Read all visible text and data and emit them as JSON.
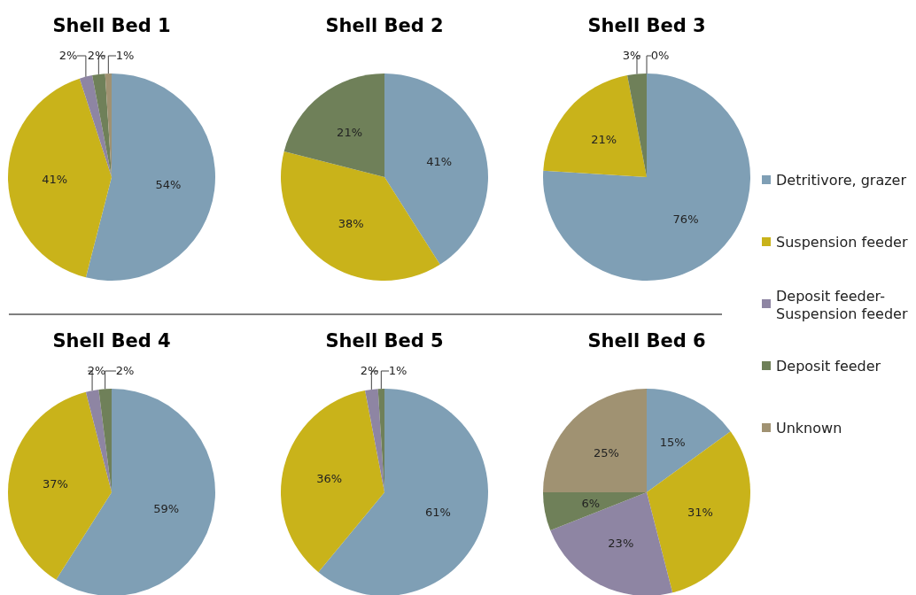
{
  "chart_data": [
    {
      "type": "pie",
      "title": "Shell Bed 1",
      "legend": "right",
      "categories": [
        "Detritivore, grazer",
        "Suspension feeder",
        "Deposit feeder-Suspension feeder",
        "Deposit feeder",
        "Unknown"
      ],
      "values": [
        54,
        41,
        2,
        2,
        1
      ],
      "value_labels": [
        "54%",
        "41%",
        "2%",
        "2%",
        "1%"
      ],
      "colors": [
        "#7f9fb5",
        "#c9b31a",
        "#8e85a3",
        "#6f8059",
        "#a09272"
      ]
    },
    {
      "type": "pie",
      "title": "Shell Bed 2",
      "categories": [
        null,
        null,
        null,
        null,
        null
      ],
      "values": [
        41,
        38,
        null,
        21,
        null
      ],
      "value_labels": [
        "41%",
        "38%",
        null,
        "21%",
        null
      ],
      "colors": [
        "#7f9fb5",
        "#c9b31a",
        "#8e85a3",
        "#6f8059",
        "#a09272"
      ]
    },
    {
      "type": "pie",
      "title": "Shell Bed 3",
      "categories": [
        null,
        null,
        null,
        null,
        null
      ],
      "values": [
        76,
        21,
        null,
        3,
        0
      ],
      "value_labels": [
        "76%",
        "21%",
        null,
        "3%",
        "0%"
      ],
      "colors": [
        "#7f9fb5",
        "#c9b31a",
        "#8e85a3",
        "#6f8059",
        "#a09272"
      ]
    },
    {
      "type": "pie",
      "title": "Shell Bed 4",
      "categories": [
        null,
        null,
        null,
        null,
        null
      ],
      "values": [
        59,
        37,
        2,
        2,
        null
      ],
      "value_labels": [
        "59%",
        "37%",
        "2%",
        "2%",
        null
      ],
      "colors": [
        "#7f9fb5",
        "#c9b31a",
        "#8e85a3",
        "#6f8059",
        "#a09272"
      ]
    },
    {
      "type": "pie",
      "title": "Shell Bed 5",
      "categories": [
        null,
        null,
        null,
        null,
        null
      ],
      "values": [
        61,
        36,
        2,
        1,
        null
      ],
      "value_labels": [
        "61%",
        "36%",
        "2%",
        "1%",
        null
      ],
      "colors": [
        "#7f9fb5",
        "#c9b31a",
        "#8e85a3",
        "#6f8059",
        "#a09272"
      ]
    },
    {
      "type": "pie",
      "title": "Shell Bed 6",
      "categories": [
        null,
        null,
        null,
        null,
        null
      ],
      "values": [
        15,
        31,
        23,
        6,
        25
      ],
      "value_labels": [
        "15%",
        "31%",
        "23%",
        "6%",
        "25%"
      ],
      "colors": [
        "#7f9fb5",
        "#c9b31a",
        "#8e85a3",
        "#6f8059",
        "#a09272"
      ]
    }
  ]
}
